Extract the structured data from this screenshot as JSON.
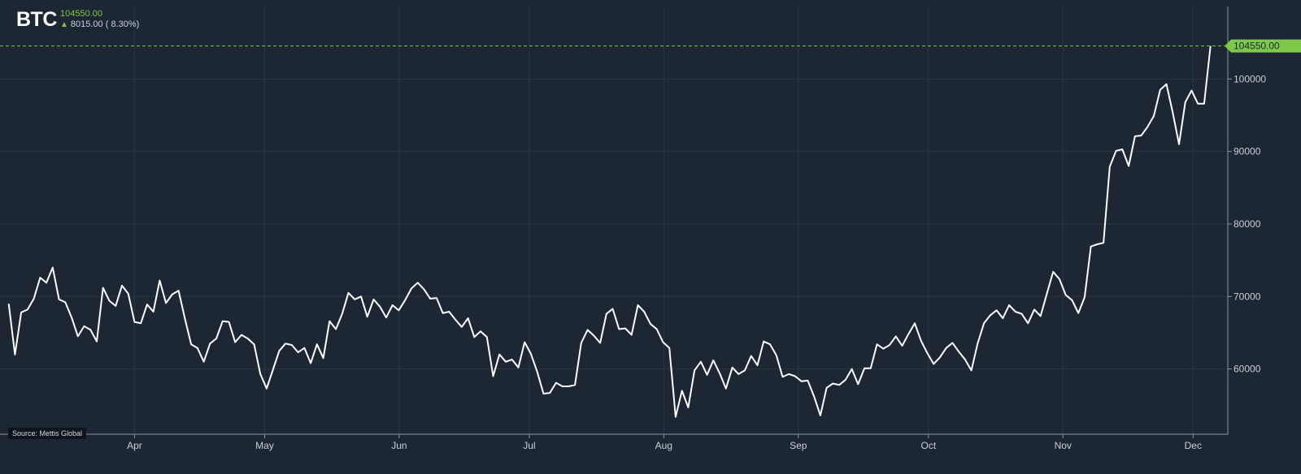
{
  "header": {
    "ticker": "BTC",
    "last_price": "104550.00",
    "change_arrow": "▲",
    "change_text": "8015.00 ( 8.30%)"
  },
  "source": "Source: Mettis Global",
  "colors": {
    "background": "#1c2733",
    "line": "#ffffff",
    "up": "#7ec84a",
    "grid": "#2a3542",
    "axis_text": "#c9cfd6"
  },
  "chart_data": {
    "type": "line",
    "title": "",
    "xlabel": "",
    "ylabel": "",
    "grid": true,
    "y_axis_position": "right",
    "ylim": [
      51000,
      110000
    ],
    "y_ticks": [
      60000,
      70000,
      80000,
      90000,
      100000
    ],
    "x_ticks": [
      {
        "label": "Apr",
        "date": "2024-04-01"
      },
      {
        "label": "May",
        "date": "2024-05-01"
      },
      {
        "label": "Jun",
        "date": "2024-06-01"
      },
      {
        "label": "Jul",
        "date": "2024-07-01"
      },
      {
        "label": "Aug",
        "date": "2024-08-01"
      },
      {
        "label": "Sep",
        "date": "2024-09-01"
      },
      {
        "label": "Oct",
        "date": "2024-10-01"
      },
      {
        "label": "Nov",
        "date": "2024-11-01"
      },
      {
        "label": "Dec",
        "date": "2024-12-01"
      }
    ],
    "last_value_label": "104550.00",
    "series": [
      {
        "start_date": "2024-03-03",
        "end_date": "2024-12-05",
        "values": [
          69000,
          62000,
          67800,
          68200,
          69700,
          72600,
          71900,
          74000,
          69600,
          69200,
          67100,
          64500,
          65900,
          65400,
          63800,
          71200,
          69400,
          68700,
          71500,
          70400,
          66500,
          66300,
          68900,
          67900,
          72200,
          69100,
          70300,
          70800,
          67000,
          63400,
          62900,
          61000,
          63500,
          64200,
          66600,
          66500,
          63700,
          64700,
          64200,
          63400,
          59300,
          57300,
          59900,
          62500,
          63500,
          63300,
          62300,
          62900,
          60800,
          63400,
          61500,
          66600,
          65500,
          67600,
          70500,
          69600,
          70000,
          67200,
          69600,
          68600,
          67100,
          68800,
          68100,
          69500,
          71100,
          71900,
          71000,
          69700,
          69800,
          67700,
          67900,
          66800,
          65800,
          67000,
          64400,
          65200,
          64400,
          59000,
          62000,
          61000,
          61300,
          60200,
          63700,
          62100,
          59600,
          56600,
          56700,
          58100,
          57600,
          57600,
          57800,
          63600,
          65400,
          64600,
          63600,
          67600,
          68300,
          65500,
          65600,
          64700,
          68800,
          67900,
          66200,
          65500,
          63700,
          62900,
          53400,
          57000,
          54700,
          59800,
          61000,
          59200,
          61200,
          59400,
          57300,
          60200,
          59300,
          59800,
          61800,
          60500,
          63800,
          63400,
          61900,
          58900,
          59300,
          59000,
          58300,
          58400,
          56200,
          53600,
          57400,
          58000,
          57800,
          58500,
          60000,
          57900,
          60100,
          60100,
          63400,
          62800,
          63300,
          64500,
          63200,
          64800,
          66300,
          63900,
          62200,
          60700,
          61600,
          62900,
          63600,
          62400,
          61300,
          59800,
          63500,
          66300,
          67400,
          68100,
          67000,
          68800,
          67900,
          67600,
          66300,
          68200,
          67300,
          70400,
          73400,
          72400,
          70200,
          69500,
          67700,
          69900,
          76900,
          77200,
          77400,
          87900,
          90100,
          90300,
          88000,
          92100,
          92200,
          93400,
          94900,
          98500,
          99300,
          95400,
          91000,
          96800,
          98400,
          96600,
          96600,
          104550
        ]
      }
    ]
  }
}
